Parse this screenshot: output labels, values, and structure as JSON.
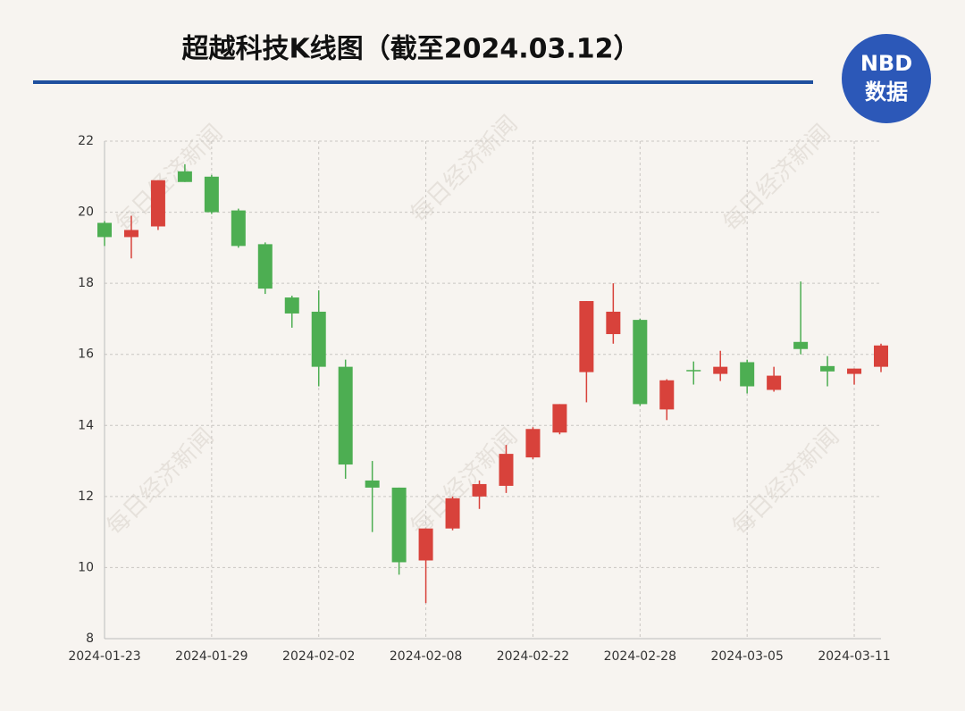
{
  "chart_data": {
    "type": "candlestick",
    "title": "超越科技K线图（截至2024.03.12）",
    "categories": [
      "2024-01-23",
      null,
      null,
      null,
      "2024-01-29",
      null,
      null,
      null,
      "2024-02-02",
      null,
      null,
      null,
      "2024-02-08",
      null,
      null,
      null,
      "2024-02-22",
      null,
      null,
      null,
      "2024-02-28",
      null,
      null,
      null,
      "2024-03-05",
      null,
      null,
      null,
      "2024-03-11",
      null
    ],
    "open": [
      19.7,
      19.3,
      19.6,
      21.15,
      21.0,
      20.05,
      19.1,
      17.6,
      17.2,
      15.65,
      12.45,
      12.25,
      10.2,
      11.1,
      12.0,
      12.3,
      13.1,
      13.8,
      15.5,
      16.57,
      16.97,
      14.45,
      15.56,
      15.45,
      15.78,
      15.0,
      16.35,
      15.67,
      15.45,
      15.65
    ],
    "high": [
      19.75,
      19.9,
      20.9,
      21.35,
      21.05,
      20.1,
      19.15,
      17.65,
      17.8,
      15.85,
      13.0,
      12.25,
      11.1,
      12.0,
      12.45,
      13.45,
      13.95,
      14.6,
      17.5,
      18.0,
      17.0,
      15.3,
      15.8,
      16.1,
      15.85,
      15.65,
      18.05,
      15.95,
      15.6,
      16.3
    ],
    "low": [
      19.05,
      18.7,
      19.5,
      20.85,
      19.95,
      19.0,
      17.7,
      16.75,
      15.1,
      12.5,
      11.0,
      9.8,
      9.0,
      11.05,
      11.65,
      12.1,
      13.05,
      13.75,
      14.65,
      16.3,
      14.55,
      14.15,
      15.15,
      15.25,
      14.9,
      14.95,
      16.0,
      15.1,
      15.15,
      15.5
    ],
    "close": [
      19.3,
      19.5,
      20.9,
      20.85,
      20.0,
      19.05,
      17.85,
      17.15,
      15.65,
      12.9,
      12.25,
      10.15,
      11.1,
      11.95,
      12.35,
      13.2,
      13.9,
      14.6,
      17.5,
      17.2,
      14.6,
      15.27,
      15.54,
      15.65,
      15.1,
      15.4,
      16.15,
      15.52,
      15.6,
      16.25
    ],
    "up_color": "#d8423b",
    "down_color": "#4dae52",
    "ylim": [
      8,
      22
    ],
    "yticks": [
      8,
      10,
      12,
      14,
      16,
      18,
      20,
      22
    ],
    "grid": true
  },
  "logo": {
    "line1": "NBD",
    "line2": "数据"
  },
  "watermark": "每日经济新闻"
}
